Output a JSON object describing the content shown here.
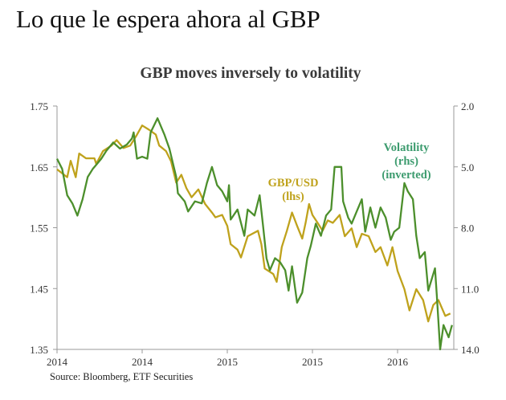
{
  "page": {
    "heading": "Lo que le espera ahora al GBP"
  },
  "chart_data": {
    "type": "line",
    "title": "GBP moves inversely to volatility",
    "source": "Source: Bloomberg, ETF Securities",
    "x_ticks": [
      {
        "value": 2014.0,
        "label": "2014"
      },
      {
        "value": 2014.5,
        "label": "2014"
      },
      {
        "value": 2015.0,
        "label": "2015"
      },
      {
        "value": 2015.5,
        "label": "2015"
      },
      {
        "value": 2016.0,
        "label": "2016"
      }
    ],
    "xlim": [
      2014.0,
      2016.36
    ],
    "y_left": {
      "lim": [
        1.35,
        1.75
      ],
      "ticks": [
        "1.75",
        "1.65",
        "1.55",
        "1.45",
        "1.35"
      ]
    },
    "y_right": {
      "lim": [
        2.0,
        14.0
      ],
      "inverted": true,
      "ticks": [
        "2.0",
        "5.0",
        "8.0",
        "11.0",
        "14.0"
      ]
    },
    "grid": false,
    "colors": {
      "gbp": "#bfa21c",
      "volatility": "#4c8f2c",
      "vol_label": "#3c9b6e",
      "axis": "#999999"
    },
    "annotations": {
      "gbp": [
        "GBP/USD",
        "(lhs)"
      ],
      "volatility": [
        "Volatility",
        "(rhs)",
        "(inverted)"
      ]
    },
    "series": [
      {
        "name": "GBP/USD (lhs)",
        "axis": "left",
        "x": [
          2014.0,
          2014.06,
          2014.08,
          2014.11,
          2014.13,
          2014.17,
          2014.22,
          2014.23,
          2014.27,
          2014.32,
          2014.35,
          2014.39,
          2014.43,
          2014.47,
          2014.5,
          2014.54,
          2014.58,
          2014.6,
          2014.64,
          2014.67,
          2014.7,
          2014.73,
          2014.76,
          2014.79,
          2014.83,
          2014.87,
          2014.91,
          2014.93,
          2014.97,
          2015.0,
          2015.02,
          2015.06,
          2015.08,
          2015.12,
          2015.18,
          2015.2,
          2015.22,
          2015.27,
          2015.29,
          2015.32,
          2015.35,
          2015.38,
          2015.41,
          2015.44,
          2015.46,
          2015.48,
          2015.5,
          2015.53,
          2015.56,
          2015.59,
          2015.62,
          2015.66,
          2015.69,
          2015.73,
          2015.76,
          2015.79,
          2015.83,
          2015.87,
          2015.9,
          2015.94,
          2015.97,
          2016.0,
          2016.04,
          2016.07,
          2016.11,
          2016.15,
          2016.18,
          2016.21,
          2016.24,
          2016.28,
          2016.31
        ],
        "y": [
          1.646,
          1.633,
          1.66,
          1.633,
          1.672,
          1.664,
          1.664,
          1.655,
          1.676,
          1.685,
          1.694,
          1.681,
          1.685,
          1.703,
          1.718,
          1.711,
          1.703,
          1.685,
          1.676,
          1.659,
          1.624,
          1.637,
          1.615,
          1.6,
          1.613,
          1.589,
          1.575,
          1.567,
          1.571,
          1.553,
          1.523,
          1.514,
          1.501,
          1.536,
          1.545,
          1.523,
          1.483,
          1.474,
          1.461,
          1.518,
          1.545,
          1.575,
          1.553,
          1.532,
          1.558,
          1.589,
          1.571,
          1.558,
          1.545,
          1.562,
          1.558,
          1.571,
          1.536,
          1.549,
          1.518,
          1.54,
          1.536,
          1.51,
          1.518,
          1.488,
          1.518,
          1.479,
          1.449,
          1.414,
          1.449,
          1.431,
          1.396,
          1.423,
          1.431,
          1.405,
          1.409
        ]
      },
      {
        "name": "Volatility (rhs) (inverted)",
        "axis": "right",
        "x": [
          2014.0,
          2014.03,
          2014.06,
          2014.09,
          2014.12,
          2014.15,
          2014.18,
          2014.21,
          2014.23,
          2014.26,
          2014.29,
          2014.33,
          2014.37,
          2014.41,
          2014.44,
          2014.45,
          2014.47,
          2014.5,
          2014.53,
          2014.55,
          2014.59,
          2014.63,
          2014.66,
          2014.7,
          2014.71,
          2014.75,
          2014.77,
          2014.81,
          2014.85,
          2014.88,
          2014.91,
          2014.94,
          2014.97,
          2015.0,
          2015.01,
          2015.02,
          2015.06,
          2015.1,
          2015.12,
          2015.16,
          2015.19,
          2015.21,
          2015.23,
          2015.25,
          2015.28,
          2015.31,
          2015.34,
          2015.36,
          2015.38,
          2015.41,
          2015.44,
          2015.47,
          2015.49,
          2015.52,
          2015.55,
          2015.58,
          2015.61,
          2015.63,
          2015.67,
          2015.68,
          2015.71,
          2015.73,
          2015.76,
          2015.79,
          2015.81,
          2015.84,
          2015.87,
          2015.9,
          2015.93,
          2015.96,
          2015.98,
          2016.01,
          2016.04,
          2016.06,
          2016.09,
          2016.11,
          2016.13,
          2016.16,
          2016.18,
          2016.22,
          2016.23,
          2016.25,
          2016.27,
          2016.3,
          2016.32
        ],
        "y": [
          4.6,
          5.1,
          6.4,
          6.8,
          7.4,
          6.6,
          5.5,
          5.1,
          4.9,
          4.6,
          4.2,
          3.8,
          4.1,
          3.9,
          3.6,
          3.3,
          4.6,
          4.5,
          4.6,
          3.3,
          2.6,
          3.4,
          4.1,
          5.5,
          6.3,
          6.7,
          7.2,
          6.7,
          6.8,
          5.8,
          5.0,
          5.9,
          6.2,
          6.7,
          5.9,
          7.6,
          7.1,
          8.4,
          7.1,
          7.4,
          6.4,
          7.9,
          9.5,
          10.1,
          9.5,
          9.7,
          10.1,
          11.1,
          9.9,
          11.7,
          11.2,
          9.5,
          8.9,
          7.8,
          8.4,
          7.4,
          7.1,
          5.0,
          5.0,
          6.7,
          7.5,
          7.8,
          7.2,
          6.6,
          8.2,
          7.0,
          8.0,
          7.0,
          7.5,
          8.6,
          8.2,
          8.0,
          5.8,
          6.2,
          6.6,
          8.4,
          9.5,
          9.2,
          11.1,
          10.0,
          11.3,
          14.0,
          12.8,
          13.4,
          12.8
        ]
      }
    ]
  }
}
